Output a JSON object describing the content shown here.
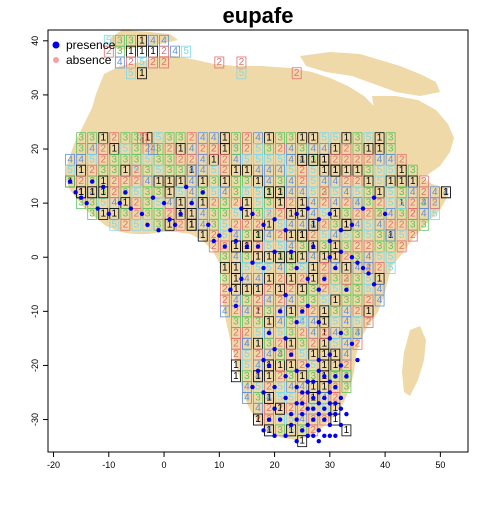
{
  "title": "eupafe",
  "colors": {
    "land": "#EFD9A8",
    "presence": "#0000EE",
    "absence": "#F4A0A0",
    "fold_1": "#000000",
    "fold_2": "#E0706F",
    "fold_3": "#5FC25F",
    "fold_4": "#5F8FD8",
    "fold_5": "#7FD8E8"
  },
  "legend": [
    {
      "label": "presence",
      "color": "#0000EE",
      "marker": "filled-circle"
    },
    {
      "label": "absence",
      "color": "#F4A0A0",
      "marker": "filled-circle"
    }
  ],
  "chart_data": {
    "type": "scatter",
    "title": "eupafe",
    "xlabel": "",
    "ylabel": "",
    "xlim": [
      -21,
      55
    ],
    "ylim": [
      -36,
      42
    ],
    "x_ticks": [
      -20,
      -10,
      0,
      10,
      20,
      30,
      40,
      50
    ],
    "y_ticks": [
      -30,
      -20,
      -10,
      0,
      10,
      20,
      30,
      40
    ],
    "grid": false,
    "legend_position": "top-left",
    "fold_cells": [
      {
        "lon": -10,
        "lat": 40,
        "fold": 5
      },
      {
        "lon": -8,
        "lat": 40,
        "fold": 3
      },
      {
        "lon": -6,
        "lat": 40,
        "fold": 3
      },
      {
        "lon": -4,
        "lat": 40,
        "fold": 1
      },
      {
        "lon": -2,
        "lat": 40,
        "fold": 4
      },
      {
        "lon": 0,
        "lat": 40,
        "fold": 4
      },
      {
        "lon": -10,
        "lat": 38,
        "fold": 2
      },
      {
        "lon": -8,
        "lat": 38,
        "fold": 3
      },
      {
        "lon": -6,
        "lat": 38,
        "fold": 1
      },
      {
        "lon": -4,
        "lat": 38,
        "fold": 1
      },
      {
        "lon": -2,
        "lat": 38,
        "fold": 1
      },
      {
        "lon": 0,
        "lat": 38,
        "fold": 2
      },
      {
        "lon": 2,
        "lat": 38,
        "fold": 4
      },
      {
        "lon": 4,
        "lat": 38,
        "fold": 5
      },
      {
        "lon": -8,
        "lat": 36,
        "fold": 4
      },
      {
        "lon": -6,
        "lat": 36,
        "fold": 2
      },
      {
        "lon": -4,
        "lat": 36,
        "fold": 5
      },
      {
        "lon": -2,
        "lat": 36,
        "fold": 2
      },
      {
        "lon": 0,
        "lat": 36,
        "fold": 2
      },
      {
        "lon": 10,
        "lat": 36,
        "fold": 2
      },
      {
        "lon": 14,
        "lat": 36,
        "fold": 2
      },
      {
        "lon": -6,
        "lat": 34,
        "fold": 5
      },
      {
        "lon": -4,
        "lat": 34,
        "fold": 1
      },
      {
        "lon": 14,
        "lat": 34,
        "fold": 5
      },
      {
        "lon": 24,
        "lat": 34,
        "fold": 2
      },
      {
        "lon": -4,
        "lat": 22,
        "fold": 2
      },
      {
        "lon": -2,
        "lat": 20,
        "fold": 4
      },
      {
        "lon": -15,
        "lat": 12,
        "fold": 1
      },
      {
        "lon": -13,
        "lat": 12,
        "fold": 1
      },
      {
        "lon": -11,
        "lat": 12,
        "fold": 1
      },
      {
        "lon": 25,
        "lat": 18,
        "fold": 1
      },
      {
        "lon": 27,
        "lat": 18,
        "fold": 1
      },
      {
        "lon": 29,
        "lat": 18,
        "fold": 1
      },
      {
        "lon": 31,
        "lat": 16,
        "fold": 1
      },
      {
        "lon": 19,
        "lat": 12,
        "fold": 1
      },
      {
        "lon": 21,
        "lat": 12,
        "fold": 1
      },
      {
        "lon": 5,
        "lat": 6,
        "fold": 1
      },
      {
        "lon": 17,
        "lat": 4,
        "fold": 1
      },
      {
        "lon": 25,
        "lat": 4,
        "fold": 1
      },
      {
        "lon": 27,
        "lat": 6,
        "fold": 1
      },
      {
        "lon": 33,
        "lat": 6,
        "fold": 1
      },
      {
        "lon": 13,
        "lat": 2,
        "fold": 1
      },
      {
        "lon": 15,
        "lat": 2,
        "fold": 1
      },
      {
        "lon": 21,
        "lat": 0,
        "fold": 1
      },
      {
        "lon": 23,
        "lat": 0,
        "fold": 1
      },
      {
        "lon": 51,
        "lat": 12,
        "fold": 1
      },
      {
        "lon": 17,
        "lat": -22,
        "fold": 1
      },
      {
        "lon": 13,
        "lat": -22,
        "fold": 1
      },
      {
        "lon": 13,
        "lat": -20,
        "fold": 1
      },
      {
        "lon": 21,
        "lat": -28,
        "fold": 1
      },
      {
        "lon": 23,
        "lat": -32,
        "fold": 1
      },
      {
        "lon": 31,
        "lat": -30,
        "fold": 1
      },
      {
        "lon": 33,
        "lat": -32,
        "fold": 1
      },
      {
        "lon": 25,
        "lat": -34,
        "fold": 1
      },
      {
        "lon": 19,
        "lat": -26,
        "fold": 1
      },
      {
        "lon": 17,
        "lat": -30,
        "fold": 1
      },
      {
        "lon": 19,
        "lat": -32,
        "fold": 1
      },
      {
        "lon": -17,
        "lat": 14,
        "fold": 3
      },
      {
        "lon": -5,
        "lat": 16,
        "fold": 2
      },
      {
        "lon": 5,
        "lat": 16,
        "fold": 4
      },
      {
        "lon": 9,
        "lat": 20,
        "fold": 2
      },
      {
        "lon": 13,
        "lat": 20,
        "fold": 3
      },
      {
        "lon": 19,
        "lat": 8,
        "fold": 5
      },
      {
        "lon": 29,
        "lat": 12,
        "fold": 2
      },
      {
        "lon": 35,
        "lat": 10,
        "fold": 4
      },
      {
        "lon": 39,
        "lat": 8,
        "fold": 3
      },
      {
        "lon": 33,
        "lat": -4,
        "fold": 2
      },
      {
        "lon": 37,
        "lat": -2,
        "fold": 4
      },
      {
        "lon": 25,
        "lat": -12,
        "fold": 5
      },
      {
        "lon": 29,
        "lat": -14,
        "fold": 2
      },
      {
        "lon": 35,
        "lat": -14,
        "fold": 4
      },
      {
        "lon": 21,
        "lat": -18,
        "fold": 3
      },
      {
        "lon": 33,
        "lat": -22,
        "fold": 3
      },
      {
        "lon": 15,
        "lat": -16,
        "fold": 4
      },
      {
        "lon": 17,
        "lat": -10,
        "fold": 2
      },
      {
        "lon": 41,
        "lat": 4,
        "fold": 4
      },
      {
        "lon": 45,
        "lat": 8,
        "fold": 2
      },
      {
        "lon": 47,
        "lat": 10,
        "fold": 4
      },
      {
        "lon": 49,
        "lat": 10,
        "fold": 2
      },
      {
        "lon": 43,
        "lat": 10,
        "fold": 5
      }
    ],
    "presence_points": [
      [
        -17,
        14
      ],
      [
        -16,
        12
      ],
      [
        -15,
        11
      ],
      [
        -14,
        10
      ],
      [
        -12,
        9
      ],
      [
        -10,
        8
      ],
      [
        -8,
        10
      ],
      [
        -6,
        9
      ],
      [
        -4,
        8
      ],
      [
        -2,
        11
      ],
      [
        0,
        10
      ],
      [
        1,
        7
      ],
      [
        3,
        8
      ],
      [
        5,
        10
      ],
      [
        2,
        6
      ],
      [
        -3,
        6
      ],
      [
        -1,
        5
      ],
      [
        8,
        6
      ],
      [
        10,
        4
      ],
      [
        12,
        5
      ],
      [
        14,
        9
      ],
      [
        16,
        8
      ],
      [
        18,
        6
      ],
      [
        20,
        7
      ],
      [
        22,
        5
      ],
      [
        24,
        8
      ],
      [
        26,
        9
      ],
      [
        28,
        7
      ],
      [
        30,
        8
      ],
      [
        32,
        5
      ],
      [
        34,
        6
      ],
      [
        36,
        9
      ],
      [
        38,
        11
      ],
      [
        40,
        8
      ],
      [
        -11,
        13
      ],
      [
        -7,
        12
      ],
      [
        -13,
        14
      ],
      [
        4,
        13
      ],
      [
        7,
        12
      ],
      [
        11,
        2
      ],
      [
        13,
        3
      ],
      [
        9,
        3
      ],
      [
        15,
        2
      ],
      [
        17,
        2
      ],
      [
        20,
        1
      ],
      [
        23,
        1
      ],
      [
        27,
        2
      ],
      [
        30,
        3
      ],
      [
        32,
        1
      ],
      [
        34,
        0
      ],
      [
        35,
        -1
      ],
      [
        36,
        -2
      ],
      [
        37,
        -3
      ],
      [
        38,
        -5
      ],
      [
        33,
        -6
      ],
      [
        30,
        0
      ],
      [
        31,
        -2
      ],
      [
        29,
        -4
      ],
      [
        28,
        -6
      ],
      [
        26,
        -9
      ],
      [
        24,
        -12
      ],
      [
        22,
        -15
      ],
      [
        20,
        -17
      ],
      [
        18,
        -19
      ],
      [
        17,
        -21
      ],
      [
        16,
        -24
      ],
      [
        18,
        -25
      ],
      [
        20,
        -24
      ],
      [
        22,
        -22
      ],
      [
        24,
        -21
      ],
      [
        26,
        -20
      ],
      [
        28,
        -19
      ],
      [
        30,
        -18
      ],
      [
        32,
        -20
      ],
      [
        33,
        -22
      ],
      [
        35,
        -19
      ],
      [
        34,
        -16
      ],
      [
        32,
        -14
      ],
      [
        30,
        -15
      ],
      [
        28,
        -12
      ],
      [
        25,
        -10
      ],
      [
        21,
        -10
      ],
      [
        19,
        -14
      ],
      [
        22,
        -7
      ],
      [
        26,
        -4
      ],
      [
        24,
        -2
      ],
      [
        18,
        -2
      ],
      [
        16,
        -1
      ],
      [
        14,
        -4
      ],
      [
        12,
        -6
      ],
      [
        13,
        -9
      ],
      [
        19,
        -20
      ],
      [
        23,
        -18
      ],
      [
        27,
        -23
      ],
      [
        29,
        -22
      ],
      [
        25,
        -25
      ],
      [
        27,
        -26
      ],
      [
        28,
        -27
      ],
      [
        29,
        -28
      ],
      [
        30,
        -25
      ],
      [
        31,
        -24
      ],
      [
        32,
        -26
      ],
      [
        30,
        -27
      ],
      [
        28,
        -29
      ],
      [
        26,
        -28
      ],
      [
        27,
        -30
      ],
      [
        29,
        -30
      ],
      [
        31,
        -29
      ],
      [
        30,
        -31
      ],
      [
        28,
        -32
      ],
      [
        26,
        -31
      ],
      [
        25,
        -29
      ],
      [
        24,
        -27
      ],
      [
        23,
        -29
      ],
      [
        25,
        -32
      ],
      [
        27,
        -33
      ],
      [
        29,
        -33
      ],
      [
        31,
        -33
      ],
      [
        32,
        -31
      ],
      [
        30,
        -29
      ],
      [
        28,
        -25
      ],
      [
        26,
        -25
      ],
      [
        24,
        -24
      ],
      [
        32,
        -28
      ],
      [
        33,
        -29
      ],
      [
        31,
        -27
      ],
      [
        29,
        -26
      ],
      [
        27,
        -28
      ],
      [
        25,
        -27
      ],
      [
        30,
        -23
      ],
      [
        31,
        -22
      ],
      [
        28,
        -21
      ],
      [
        26,
        -23
      ],
      [
        24,
        -30
      ],
      [
        26,
        -33
      ],
      [
        28,
        -34
      ],
      [
        30,
        -33
      ],
      [
        22,
        -26
      ],
      [
        20,
        -28
      ],
      [
        21,
        -30
      ],
      [
        23,
        -31
      ],
      [
        19,
        -30
      ],
      [
        18,
        -32
      ],
      [
        20,
        -33
      ],
      [
        22,
        -33
      ],
      [
        24,
        -34
      ]
    ]
  }
}
